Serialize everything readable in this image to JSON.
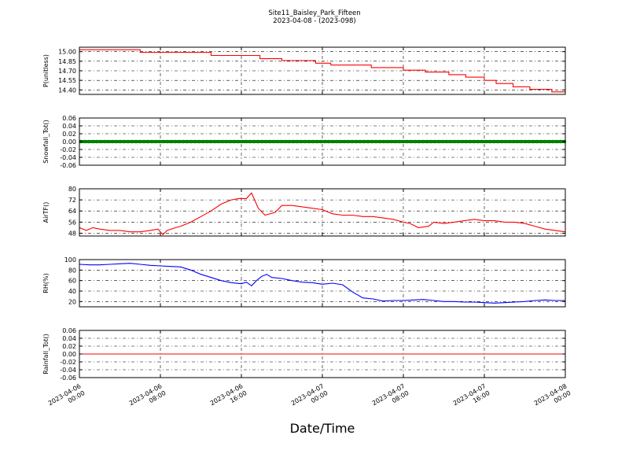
{
  "title": "Site11_Baisley_Park_Fifteen",
  "subtitle": "2023-04-08 - (2023-098)",
  "xlabel": "Date/Time",
  "x_ticks": [
    {
      "line1": "2023-04-06",
      "line2": "00:00"
    },
    {
      "line1": "2023-04-06",
      "line2": "08:00"
    },
    {
      "line1": "2023-04-06",
      "line2": "16:00"
    },
    {
      "line1": "2023-04-07",
      "line2": "00:00"
    },
    {
      "line1": "2023-04-07",
      "line2": "08:00"
    },
    {
      "line1": "2023-04-07",
      "line2": "16:00"
    },
    {
      "line1": "2023-04-08",
      "line2": "00:00"
    }
  ],
  "chart_data": [
    {
      "type": "line",
      "ylabel": "P(unitless)",
      "color": "#ff0000",
      "ylim": [
        14.33,
        15.07
      ],
      "yticks": [
        "14.40",
        "14.55",
        "14.70",
        "14.85",
        "15.00"
      ],
      "xlim": [
        "2023-04-06 00:00",
        "2023-04-08 00:00"
      ],
      "grid": true,
      "series": [
        {
          "x": [
            "2023-04-06 00:00",
            "2023-04-06 06:00",
            "2023-04-06 06:00",
            "2023-04-06 13:00",
            "2023-04-06 13:00",
            "2023-04-06 17:50",
            "2023-04-06 17:50",
            "2023-04-06 20:00",
            "2023-04-06 20:00",
            "2023-04-06 23:20",
            "2023-04-06 23:20",
            "2023-04-07 00:50",
            "2023-04-07 00:50",
            "2023-04-07 04:50",
            "2023-04-07 04:50",
            "2023-04-07 08:00",
            "2023-04-07 08:00",
            "2023-04-07 10:10",
            "2023-04-07 10:10",
            "2023-04-07 12:30",
            "2023-04-07 12:30",
            "2023-04-07 14:10",
            "2023-04-07 14:10",
            "2023-04-07 16:00",
            "2023-04-07 16:00",
            "2023-04-07 17:10",
            "2023-04-07 17:10",
            "2023-04-07 18:50",
            "2023-04-07 18:50",
            "2023-04-07 20:30",
            "2023-04-07 20:30",
            "2023-04-07 22:40",
            "2023-04-07 22:40",
            "2023-04-08 00:00"
          ],
          "y": [
            15.03,
            15.03,
            14.99,
            14.99,
            14.94,
            14.94,
            14.89,
            14.89,
            14.86,
            14.86,
            14.82,
            14.82,
            14.79,
            14.79,
            14.75,
            14.75,
            14.71,
            14.71,
            14.68,
            14.68,
            14.64,
            14.64,
            14.6,
            14.6,
            14.55,
            14.55,
            14.5,
            14.5,
            14.45,
            14.45,
            14.41,
            14.41,
            14.37,
            14.37
          ]
        }
      ]
    },
    {
      "type": "line",
      "ylabel": "Snowfall_Tot()",
      "color": "#008000",
      "ylim": [
        -0.06,
        0.06
      ],
      "yticks": [
        "-0.06",
        "-0.04",
        "-0.02",
        "0.00",
        "0.02",
        "0.04",
        "0.06"
      ],
      "xlim": [
        "2023-04-06 00:00",
        "2023-04-08 00:00"
      ],
      "grid": true,
      "markers": true,
      "series": [
        {
          "x": [
            "2023-04-06 00:00",
            "2023-04-08 00:00"
          ],
          "y": [
            0.0,
            0.0
          ]
        }
      ]
    },
    {
      "type": "line",
      "ylabel": "AirTF()",
      "color": "#ff0000",
      "ylim": [
        46,
        80
      ],
      "yticks": [
        "48",
        "56",
        "64",
        "72",
        "80"
      ],
      "xlim": [
        "2023-04-06 00:00",
        "2023-04-08 00:00"
      ],
      "grid": true,
      "series": [
        {
          "x": [
            "2023-04-06 00:00",
            "2023-04-06 00:40",
            "2023-04-06 01:20",
            "2023-04-06 02:00",
            "2023-04-06 03:00",
            "2023-04-06 04:00",
            "2023-04-06 05:00",
            "2023-04-06 06:00",
            "2023-04-06 07:00",
            "2023-04-06 07:45",
            "2023-04-06 08:15",
            "2023-04-06 08:40",
            "2023-04-06 09:30",
            "2023-04-06 10:00",
            "2023-04-06 11:00",
            "2023-04-06 12:00",
            "2023-04-06 13:00",
            "2023-04-06 14:00",
            "2023-04-06 15:00",
            "2023-04-06 15:45",
            "2023-04-06 16:30",
            "2023-04-06 17:00",
            "2023-04-06 17:40",
            "2023-04-06 18:20",
            "2023-04-06 19:20",
            "2023-04-06 20:00",
            "2023-04-06 21:00",
            "2023-04-06 22:00",
            "2023-04-06 23:00",
            "2023-04-07 00:00",
            "2023-04-07 01:00",
            "2023-04-07 02:00",
            "2023-04-07 03:00",
            "2023-04-07 04:00",
            "2023-04-07 05:00",
            "2023-04-07 06:00",
            "2023-04-07 07:00",
            "2023-04-07 08:00",
            "2023-04-07 08:40",
            "2023-04-07 09:30",
            "2023-04-07 10:30",
            "2023-04-07 11:00",
            "2023-04-07 12:00",
            "2023-04-07 13:00",
            "2023-04-07 14:00",
            "2023-04-07 15:00",
            "2023-04-07 16:00",
            "2023-04-07 17:00",
            "2023-04-07 18:00",
            "2023-04-07 19:00",
            "2023-04-07 20:00",
            "2023-04-07 21:00",
            "2023-04-07 22:00",
            "2023-04-07 23:00",
            "2023-04-08 00:00"
          ],
          "y": [
            52,
            50,
            52,
            51,
            50,
            50,
            49,
            49,
            50,
            51,
            47,
            50,
            52,
            53,
            56,
            60,
            64,
            69,
            72,
            73,
            73,
            77,
            66,
            61,
            63,
            68,
            68,
            67,
            66,
            65,
            62,
            61,
            61,
            60,
            60,
            59,
            58,
            56,
            55,
            52,
            53,
            56,
            55,
            56,
            57,
            58,
            57,
            57,
            56,
            56,
            55,
            53,
            51,
            50,
            49
          ]
        }
      ]
    },
    {
      "type": "line",
      "ylabel": "RH(%)",
      "color": "#0000ff",
      "ylim": [
        10,
        100
      ],
      "yticks": [
        "20",
        "40",
        "60",
        "80",
        "100"
      ],
      "xlim": [
        "2023-04-06 00:00",
        "2023-04-08 00:00"
      ],
      "grid": true,
      "series": [
        {
          "x": [
            "2023-04-06 00:00",
            "2023-04-06 01:00",
            "2023-04-06 02:00",
            "2023-04-06 03:00",
            "2023-04-06 04:00",
            "2023-04-06 05:00",
            "2023-04-06 06:00",
            "2023-04-06 07:00",
            "2023-04-06 08:00",
            "2023-04-06 09:00",
            "2023-04-06 10:00",
            "2023-04-06 11:00",
            "2023-04-06 12:00",
            "2023-04-06 13:00",
            "2023-04-06 14:00",
            "2023-04-06 15:00",
            "2023-04-06 16:00",
            "2023-04-06 16:30",
            "2023-04-06 17:00",
            "2023-04-06 17:30",
            "2023-04-06 18:00",
            "2023-04-06 18:30",
            "2023-04-06 19:00",
            "2023-04-06 20:00",
            "2023-04-06 21:00",
            "2023-04-06 22:00",
            "2023-04-06 23:00",
            "2023-04-07 00:00",
            "2023-04-07 01:00",
            "2023-04-07 02:00",
            "2023-04-07 03:00",
            "2023-04-07 04:00",
            "2023-04-07 05:00",
            "2023-04-07 06:00",
            "2023-04-07 07:00",
            "2023-04-07 08:00",
            "2023-04-07 09:00",
            "2023-04-07 10:00",
            "2023-04-07 11:00",
            "2023-04-07 12:00",
            "2023-04-07 13:00",
            "2023-04-07 14:00",
            "2023-04-07 15:00",
            "2023-04-07 16:00",
            "2023-04-07 17:00",
            "2023-04-07 18:00",
            "2023-04-07 19:00",
            "2023-04-07 20:00",
            "2023-04-07 21:00",
            "2023-04-07 22:00",
            "2023-04-07 23:00",
            "2023-04-08 00:00"
          ],
          "y": [
            91,
            90,
            90,
            91,
            92,
            93,
            91,
            89,
            88,
            87,
            86,
            80,
            72,
            66,
            60,
            56,
            54,
            57,
            50,
            60,
            68,
            72,
            66,
            64,
            60,
            57,
            56,
            53,
            55,
            52,
            38,
            27,
            25,
            21,
            22,
            22,
            23,
            24,
            22,
            20,
            20,
            19,
            19,
            18,
            17,
            18,
            19,
            20,
            22,
            23,
            22,
            22
          ]
        }
      ]
    },
    {
      "type": "line",
      "ylabel": "Rainfall_Tot()",
      "color": "#ff0000",
      "ylim": [
        -0.06,
        0.06
      ],
      "yticks": [
        "-0.06",
        "-0.04",
        "-0.02",
        "0.00",
        "0.02",
        "0.04",
        "0.06"
      ],
      "xlim": [
        "2023-04-06 00:00",
        "2023-04-08 00:00"
      ],
      "grid": true,
      "series": [
        {
          "x": [
            "2023-04-06 00:00",
            "2023-04-08 00:00"
          ],
          "y": [
            0.0,
            0.0
          ]
        }
      ]
    }
  ]
}
